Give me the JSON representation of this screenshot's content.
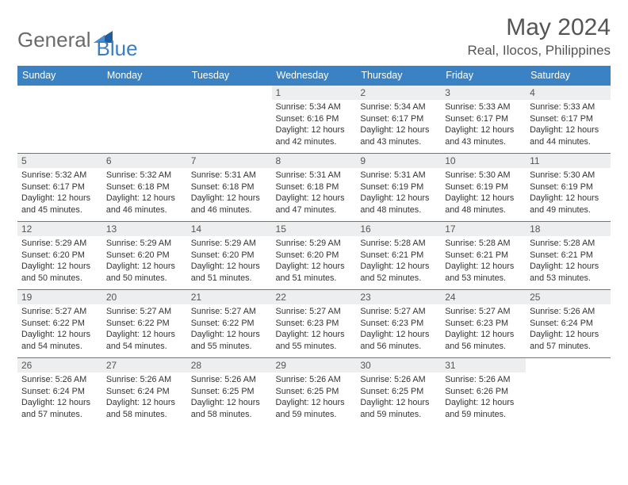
{
  "logo": {
    "word1": "General",
    "word2": "Blue",
    "icon_color": "#1f5e9e"
  },
  "title": "May 2024",
  "location": "Real, Ilocos, Philippines",
  "colors": {
    "header_bg": "#3b82c4",
    "header_text": "#ffffff",
    "daynum_bg": "#eceef0",
    "border": "#3b82c4",
    "logo_gray": "#6b6b6b",
    "logo_blue": "#3b7ec1",
    "title_color": "#555555"
  },
  "typography": {
    "title_fontsize": 30,
    "location_fontsize": 17,
    "weekday_fontsize": 12.5,
    "daynum_fontsize": 12,
    "body_fontsize": 10.8
  },
  "weekdays": [
    "Sunday",
    "Monday",
    "Tuesday",
    "Wednesday",
    "Thursday",
    "Friday",
    "Saturday"
  ],
  "weeks": [
    [
      null,
      null,
      null,
      {
        "n": "1",
        "sr": "5:34 AM",
        "ss": "6:16 PM",
        "dl": "12 hours and 42 minutes."
      },
      {
        "n": "2",
        "sr": "5:34 AM",
        "ss": "6:17 PM",
        "dl": "12 hours and 43 minutes."
      },
      {
        "n": "3",
        "sr": "5:33 AM",
        "ss": "6:17 PM",
        "dl": "12 hours and 43 minutes."
      },
      {
        "n": "4",
        "sr": "5:33 AM",
        "ss": "6:17 PM",
        "dl": "12 hours and 44 minutes."
      }
    ],
    [
      {
        "n": "5",
        "sr": "5:32 AM",
        "ss": "6:17 PM",
        "dl": "12 hours and 45 minutes."
      },
      {
        "n": "6",
        "sr": "5:32 AM",
        "ss": "6:18 PM",
        "dl": "12 hours and 46 minutes."
      },
      {
        "n": "7",
        "sr": "5:31 AM",
        "ss": "6:18 PM",
        "dl": "12 hours and 46 minutes."
      },
      {
        "n": "8",
        "sr": "5:31 AM",
        "ss": "6:18 PM",
        "dl": "12 hours and 47 minutes."
      },
      {
        "n": "9",
        "sr": "5:31 AM",
        "ss": "6:19 PM",
        "dl": "12 hours and 48 minutes."
      },
      {
        "n": "10",
        "sr": "5:30 AM",
        "ss": "6:19 PM",
        "dl": "12 hours and 48 minutes."
      },
      {
        "n": "11",
        "sr": "5:30 AM",
        "ss": "6:19 PM",
        "dl": "12 hours and 49 minutes."
      }
    ],
    [
      {
        "n": "12",
        "sr": "5:29 AM",
        "ss": "6:20 PM",
        "dl": "12 hours and 50 minutes."
      },
      {
        "n": "13",
        "sr": "5:29 AM",
        "ss": "6:20 PM",
        "dl": "12 hours and 50 minutes."
      },
      {
        "n": "14",
        "sr": "5:29 AM",
        "ss": "6:20 PM",
        "dl": "12 hours and 51 minutes."
      },
      {
        "n": "15",
        "sr": "5:29 AM",
        "ss": "6:20 PM",
        "dl": "12 hours and 51 minutes."
      },
      {
        "n": "16",
        "sr": "5:28 AM",
        "ss": "6:21 PM",
        "dl": "12 hours and 52 minutes."
      },
      {
        "n": "17",
        "sr": "5:28 AM",
        "ss": "6:21 PM",
        "dl": "12 hours and 53 minutes."
      },
      {
        "n": "18",
        "sr": "5:28 AM",
        "ss": "6:21 PM",
        "dl": "12 hours and 53 minutes."
      }
    ],
    [
      {
        "n": "19",
        "sr": "5:27 AM",
        "ss": "6:22 PM",
        "dl": "12 hours and 54 minutes."
      },
      {
        "n": "20",
        "sr": "5:27 AM",
        "ss": "6:22 PM",
        "dl": "12 hours and 54 minutes."
      },
      {
        "n": "21",
        "sr": "5:27 AM",
        "ss": "6:22 PM",
        "dl": "12 hours and 55 minutes."
      },
      {
        "n": "22",
        "sr": "5:27 AM",
        "ss": "6:23 PM",
        "dl": "12 hours and 55 minutes."
      },
      {
        "n": "23",
        "sr": "5:27 AM",
        "ss": "6:23 PM",
        "dl": "12 hours and 56 minutes."
      },
      {
        "n": "24",
        "sr": "5:27 AM",
        "ss": "6:23 PM",
        "dl": "12 hours and 56 minutes."
      },
      {
        "n": "25",
        "sr": "5:26 AM",
        "ss": "6:24 PM",
        "dl": "12 hours and 57 minutes."
      }
    ],
    [
      {
        "n": "26",
        "sr": "5:26 AM",
        "ss": "6:24 PM",
        "dl": "12 hours and 57 minutes."
      },
      {
        "n": "27",
        "sr": "5:26 AM",
        "ss": "6:24 PM",
        "dl": "12 hours and 58 minutes."
      },
      {
        "n": "28",
        "sr": "5:26 AM",
        "ss": "6:25 PM",
        "dl": "12 hours and 58 minutes."
      },
      {
        "n": "29",
        "sr": "5:26 AM",
        "ss": "6:25 PM",
        "dl": "12 hours and 59 minutes."
      },
      {
        "n": "30",
        "sr": "5:26 AM",
        "ss": "6:25 PM",
        "dl": "12 hours and 59 minutes."
      },
      {
        "n": "31",
        "sr": "5:26 AM",
        "ss": "6:26 PM",
        "dl": "12 hours and 59 minutes."
      },
      null
    ]
  ],
  "labels": {
    "sunrise": "Sunrise:",
    "sunset": "Sunset:",
    "daylight": "Daylight:"
  }
}
